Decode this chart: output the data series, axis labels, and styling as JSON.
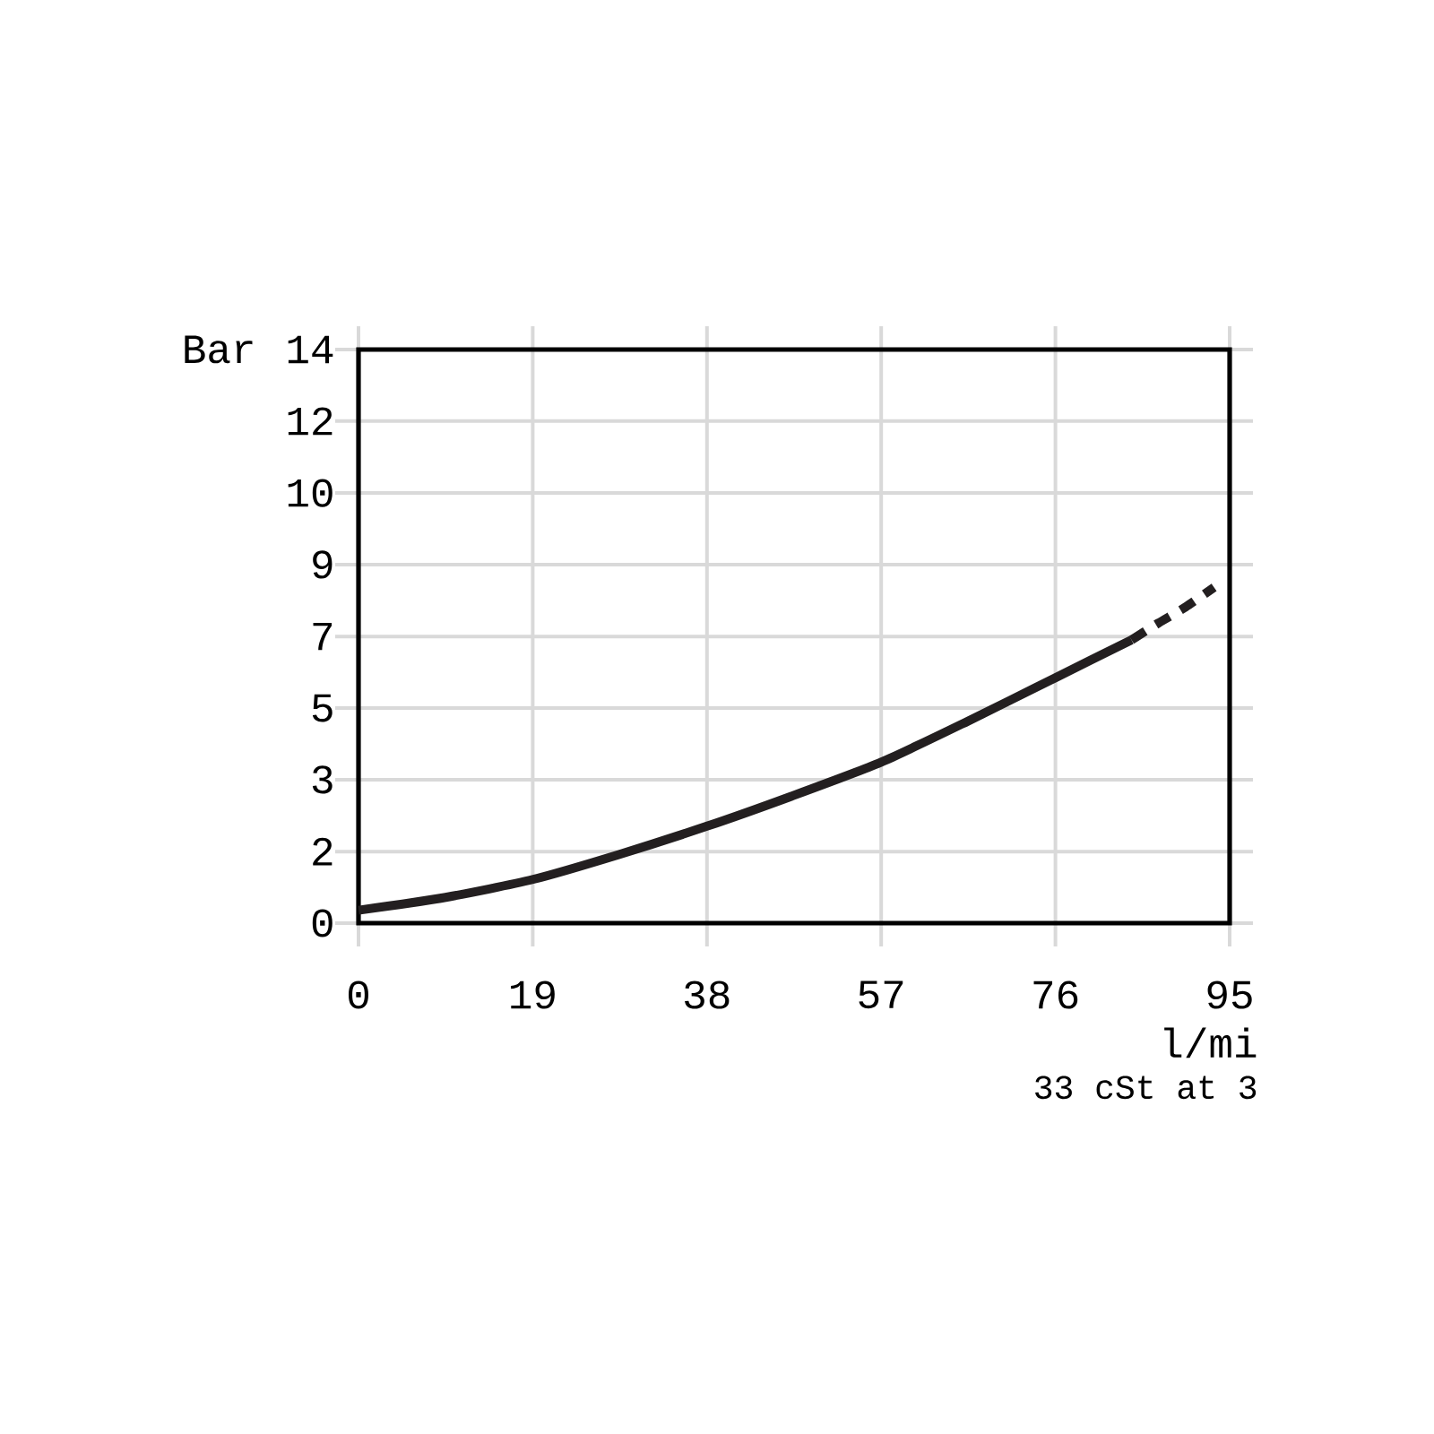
{
  "chart_data": {
    "type": "line",
    "xlabel": "l/mi",
    "ylabel": "Bar",
    "annotations": [
      "33 cSt at 3"
    ],
    "xlim": [
      0,
      95
    ],
    "xticks": [
      0,
      19,
      38,
      57,
      76,
      95
    ],
    "ylim": [
      0,
      13.79
    ],
    "yticks": [
      0,
      {
        "value": 1.72,
        "label": "2"
      },
      {
        "value": 3.45,
        "label": "3"
      },
      {
        "value": 5.17,
        "label": "5"
      },
      {
        "value": 6.89,
        "label": "7"
      },
      {
        "value": 8.62,
        "label": "9"
      },
      {
        "value": 10.34,
        "label": "10"
      },
      {
        "value": 12.07,
        "label": "12"
      },
      {
        "value": 13.79,
        "label": "14"
      }
    ],
    "grid": true,
    "series": [
      {
        "color": "#231f20",
        "line_style": "solid",
        "x": [
          0,
          9.5,
          19,
          28.4,
          38,
          47.2,
          57,
          66.4,
          76,
          84.3
        ],
        "values": [
          0.31,
          0.62,
          1.05,
          1.65,
          2.33,
          3.05,
          3.87,
          4.85,
          5.9,
          6.81
        ]
      },
      {
        "color": "#231f20",
        "line_style": "dashed",
        "x": [
          84.3,
          87.2,
          90.2,
          93.3
        ],
        "values": [
          6.81,
          7.21,
          7.6,
          8.07
        ]
      }
    ]
  }
}
